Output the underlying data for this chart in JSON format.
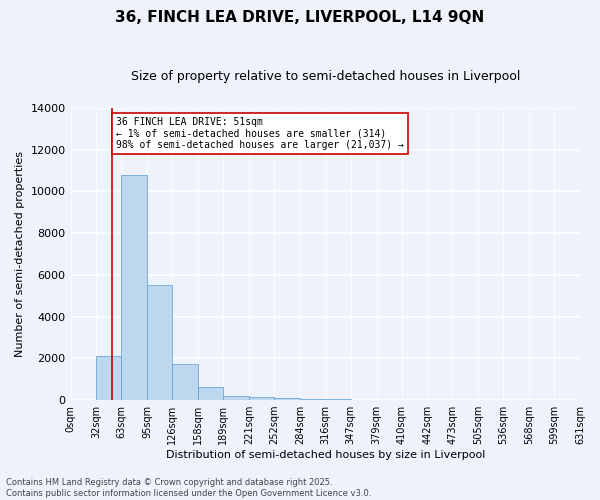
{
  "title": "36, FINCH LEA DRIVE, LIVERPOOL, L14 9QN",
  "subtitle": "Size of property relative to semi-detached houses in Liverpool",
  "xlabel": "Distribution of semi-detached houses by size in Liverpool",
  "ylabel": "Number of semi-detached properties",
  "bin_edges": [
    0,
    32,
    63,
    95,
    126,
    158,
    189,
    221,
    252,
    284,
    316,
    347,
    379,
    410,
    442,
    473,
    505,
    536,
    568,
    599,
    631
  ],
  "bin_counts": [
    0,
    2100,
    10800,
    5500,
    1750,
    650,
    200,
    130,
    80,
    50,
    30,
    20,
    15,
    10,
    8,
    5,
    3,
    2,
    1,
    1
  ],
  "bar_color": "#bdd7ee",
  "bar_edge_color": "#5b9bd5",
  "property_size": 51,
  "red_line_color": "#cc0000",
  "annotation_text": "36 FINCH LEA DRIVE: 51sqm\n← 1% of semi-detached houses are smaller (314)\n98% of semi-detached houses are larger (21,037) →",
  "annotation_box_color": "#ffffff",
  "annotation_border_color": "#cc0000",
  "ylim": [
    0,
    14000
  ],
  "xlim": [
    0,
    631
  ],
  "background_color": "#eef2fb",
  "footer_text": "Contains HM Land Registry data © Crown copyright and database right 2025.\nContains public sector information licensed under the Open Government Licence v3.0.",
  "title_fontsize": 11,
  "subtitle_fontsize": 9,
  "tick_fontsize": 7,
  "ylabel_fontsize": 8,
  "xlabel_fontsize": 8,
  "annotation_fontsize": 7,
  "footer_fontsize": 6
}
